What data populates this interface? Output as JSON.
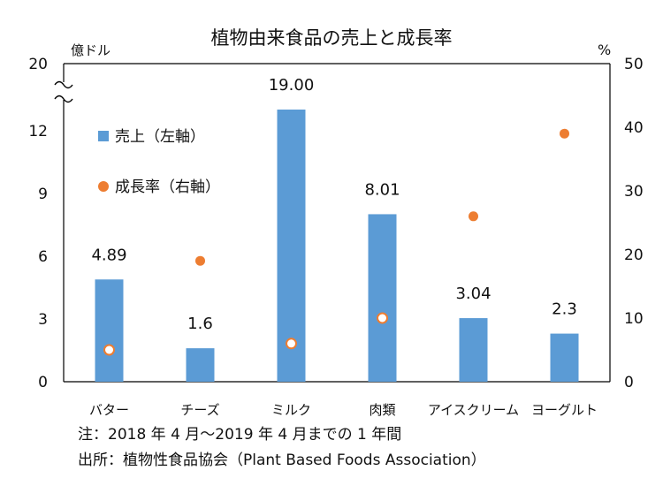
{
  "chart_data": {
    "type": "bar",
    "title": "植物由来食品の売上と成長率",
    "ylabel_left": "億ドル",
    "ylabel_right": "%",
    "categories": [
      "バター",
      "チーズ",
      "ミルク",
      "肉類",
      "アイスクリーム",
      "ヨーグルト"
    ],
    "series": [
      {
        "name": "売上（左軸）",
        "axis": "left",
        "values": [
          4.89,
          1.6,
          19.0,
          8.01,
          3.04,
          2.3
        ],
        "labels": [
          "4.89",
          "1.6",
          "19.00",
          "8.01",
          "3.04",
          "2.3"
        ],
        "color": "#5b9bd5"
      },
      {
        "name": "成長率（右軸）",
        "axis": "right",
        "values": [
          5,
          19,
          6,
          10,
          26,
          39
        ],
        "color": "#ed7d31"
      }
    ],
    "left_ticks": [
      "0",
      "3",
      "6",
      "9",
      "12",
      "20"
    ],
    "left_axis_break": "12 → 20",
    "right_ticks": [
      "0",
      "10",
      "20",
      "30",
      "40",
      "50"
    ],
    "right_ylim": [
      0,
      50
    ],
    "grid": false,
    "legend_position": "top-left inside plot"
  },
  "notes": {
    "line1": "注：2018 年 4 月～2019 年 4 月までの 1 年間",
    "line2": "出所：植物性食品協会（Plant Based Foods Association）"
  }
}
